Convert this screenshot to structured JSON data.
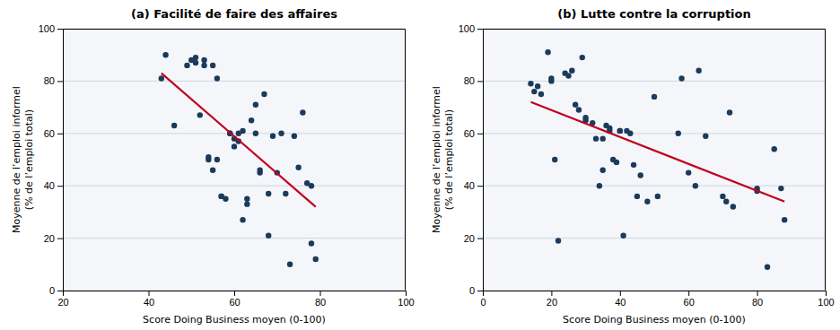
{
  "chart_data": [
    {
      "type": "scatter",
      "title": "(a) Facilité de faire des affaires",
      "x_label": "Score Doing Business moyen (0-100)",
      "y_label": "Moyenne de l’emploi informel\n(% de l’emploi total)",
      "xlim": [
        20,
        100
      ],
      "ylim": [
        0,
        100
      ],
      "xticks": [
        20,
        40,
        60,
        80,
        100
      ],
      "yticks": [
        0,
        20,
        40,
        60,
        80,
        100
      ],
      "grid": "y",
      "series": [
        {
          "type": "scatter",
          "color": "#1b3a5c",
          "marker": "circle",
          "x": [
            43,
            44,
            46,
            49,
            50,
            51,
            51,
            52,
            53,
            53,
            54,
            54,
            55,
            55,
            56,
            56,
            57,
            57,
            58,
            59,
            59,
            60,
            60,
            61,
            61,
            62,
            62,
            63,
            63,
            64,
            65,
            65,
            66,
            66,
            67,
            68,
            68,
            69,
            70,
            71,
            72,
            73,
            74,
            75,
            76,
            77,
            78,
            78,
            79
          ],
          "values": [
            81,
            90,
            63,
            86,
            88,
            87,
            89,
            67,
            86,
            88,
            50,
            51,
            46,
            86,
            50,
            81,
            36,
            36,
            35,
            60,
            60,
            55,
            58,
            57,
            60,
            27,
            61,
            33,
            35,
            65,
            60,
            71,
            45,
            46,
            75,
            21,
            37,
            59,
            45,
            60,
            37,
            10,
            59,
            47,
            68,
            41,
            18,
            40,
            12
          ]
        },
        {
          "type": "line",
          "color": "#c00020",
          "line_style": "solid",
          "x": [
            43,
            79
          ],
          "values": [
            83,
            32
          ]
        }
      ]
    },
    {
      "type": "scatter",
      "title": "(b) Lutte contre la corruption",
      "x_label": "Score Doing Business moyen (0-100)",
      "y_label": "Moyenne de l’emploi informel\n(% de l’emploi total)",
      "xlim": [
        0,
        100
      ],
      "ylim": [
        0,
        100
      ],
      "xticks": [
        0,
        20,
        40,
        60,
        80,
        100
      ],
      "yticks": [
        0,
        20,
        40,
        60,
        80,
        100
      ],
      "grid": "y",
      "series": [
        {
          "type": "scatter",
          "color": "#1b3a5c",
          "marker": "circle",
          "x": [
            14,
            15,
            16,
            17,
            19,
            20,
            20,
            21,
            22,
            24,
            25,
            26,
            27,
            28,
            29,
            30,
            30,
            32,
            33,
            34,
            35,
            35,
            36,
            37,
            37,
            38,
            39,
            40,
            40,
            41,
            42,
            43,
            44,
            45,
            46,
            48,
            50,
            51,
            57,
            58,
            60,
            62,
            63,
            65,
            70,
            71,
            72,
            73,
            80,
            80,
            83,
            85,
            87,
            88
          ],
          "values": [
            79,
            76,
            78,
            75,
            91,
            80,
            81,
            50,
            19,
            83,
            82,
            84,
            71,
            69,
            89,
            65,
            66,
            64,
            58,
            40,
            46,
            58,
            63,
            61,
            62,
            50,
            49,
            61,
            61,
            21,
            61,
            60,
            48,
            36,
            44,
            34,
            74,
            36,
            60,
            81,
            45,
            40,
            84,
            59,
            36,
            34,
            68,
            32,
            38,
            39,
            9,
            54,
            39,
            27
          ]
        },
        {
          "type": "line",
          "color": "#c00020",
          "line_style": "solid",
          "x": [
            14,
            88
          ],
          "values": [
            72,
            34
          ]
        }
      ]
    }
  ]
}
